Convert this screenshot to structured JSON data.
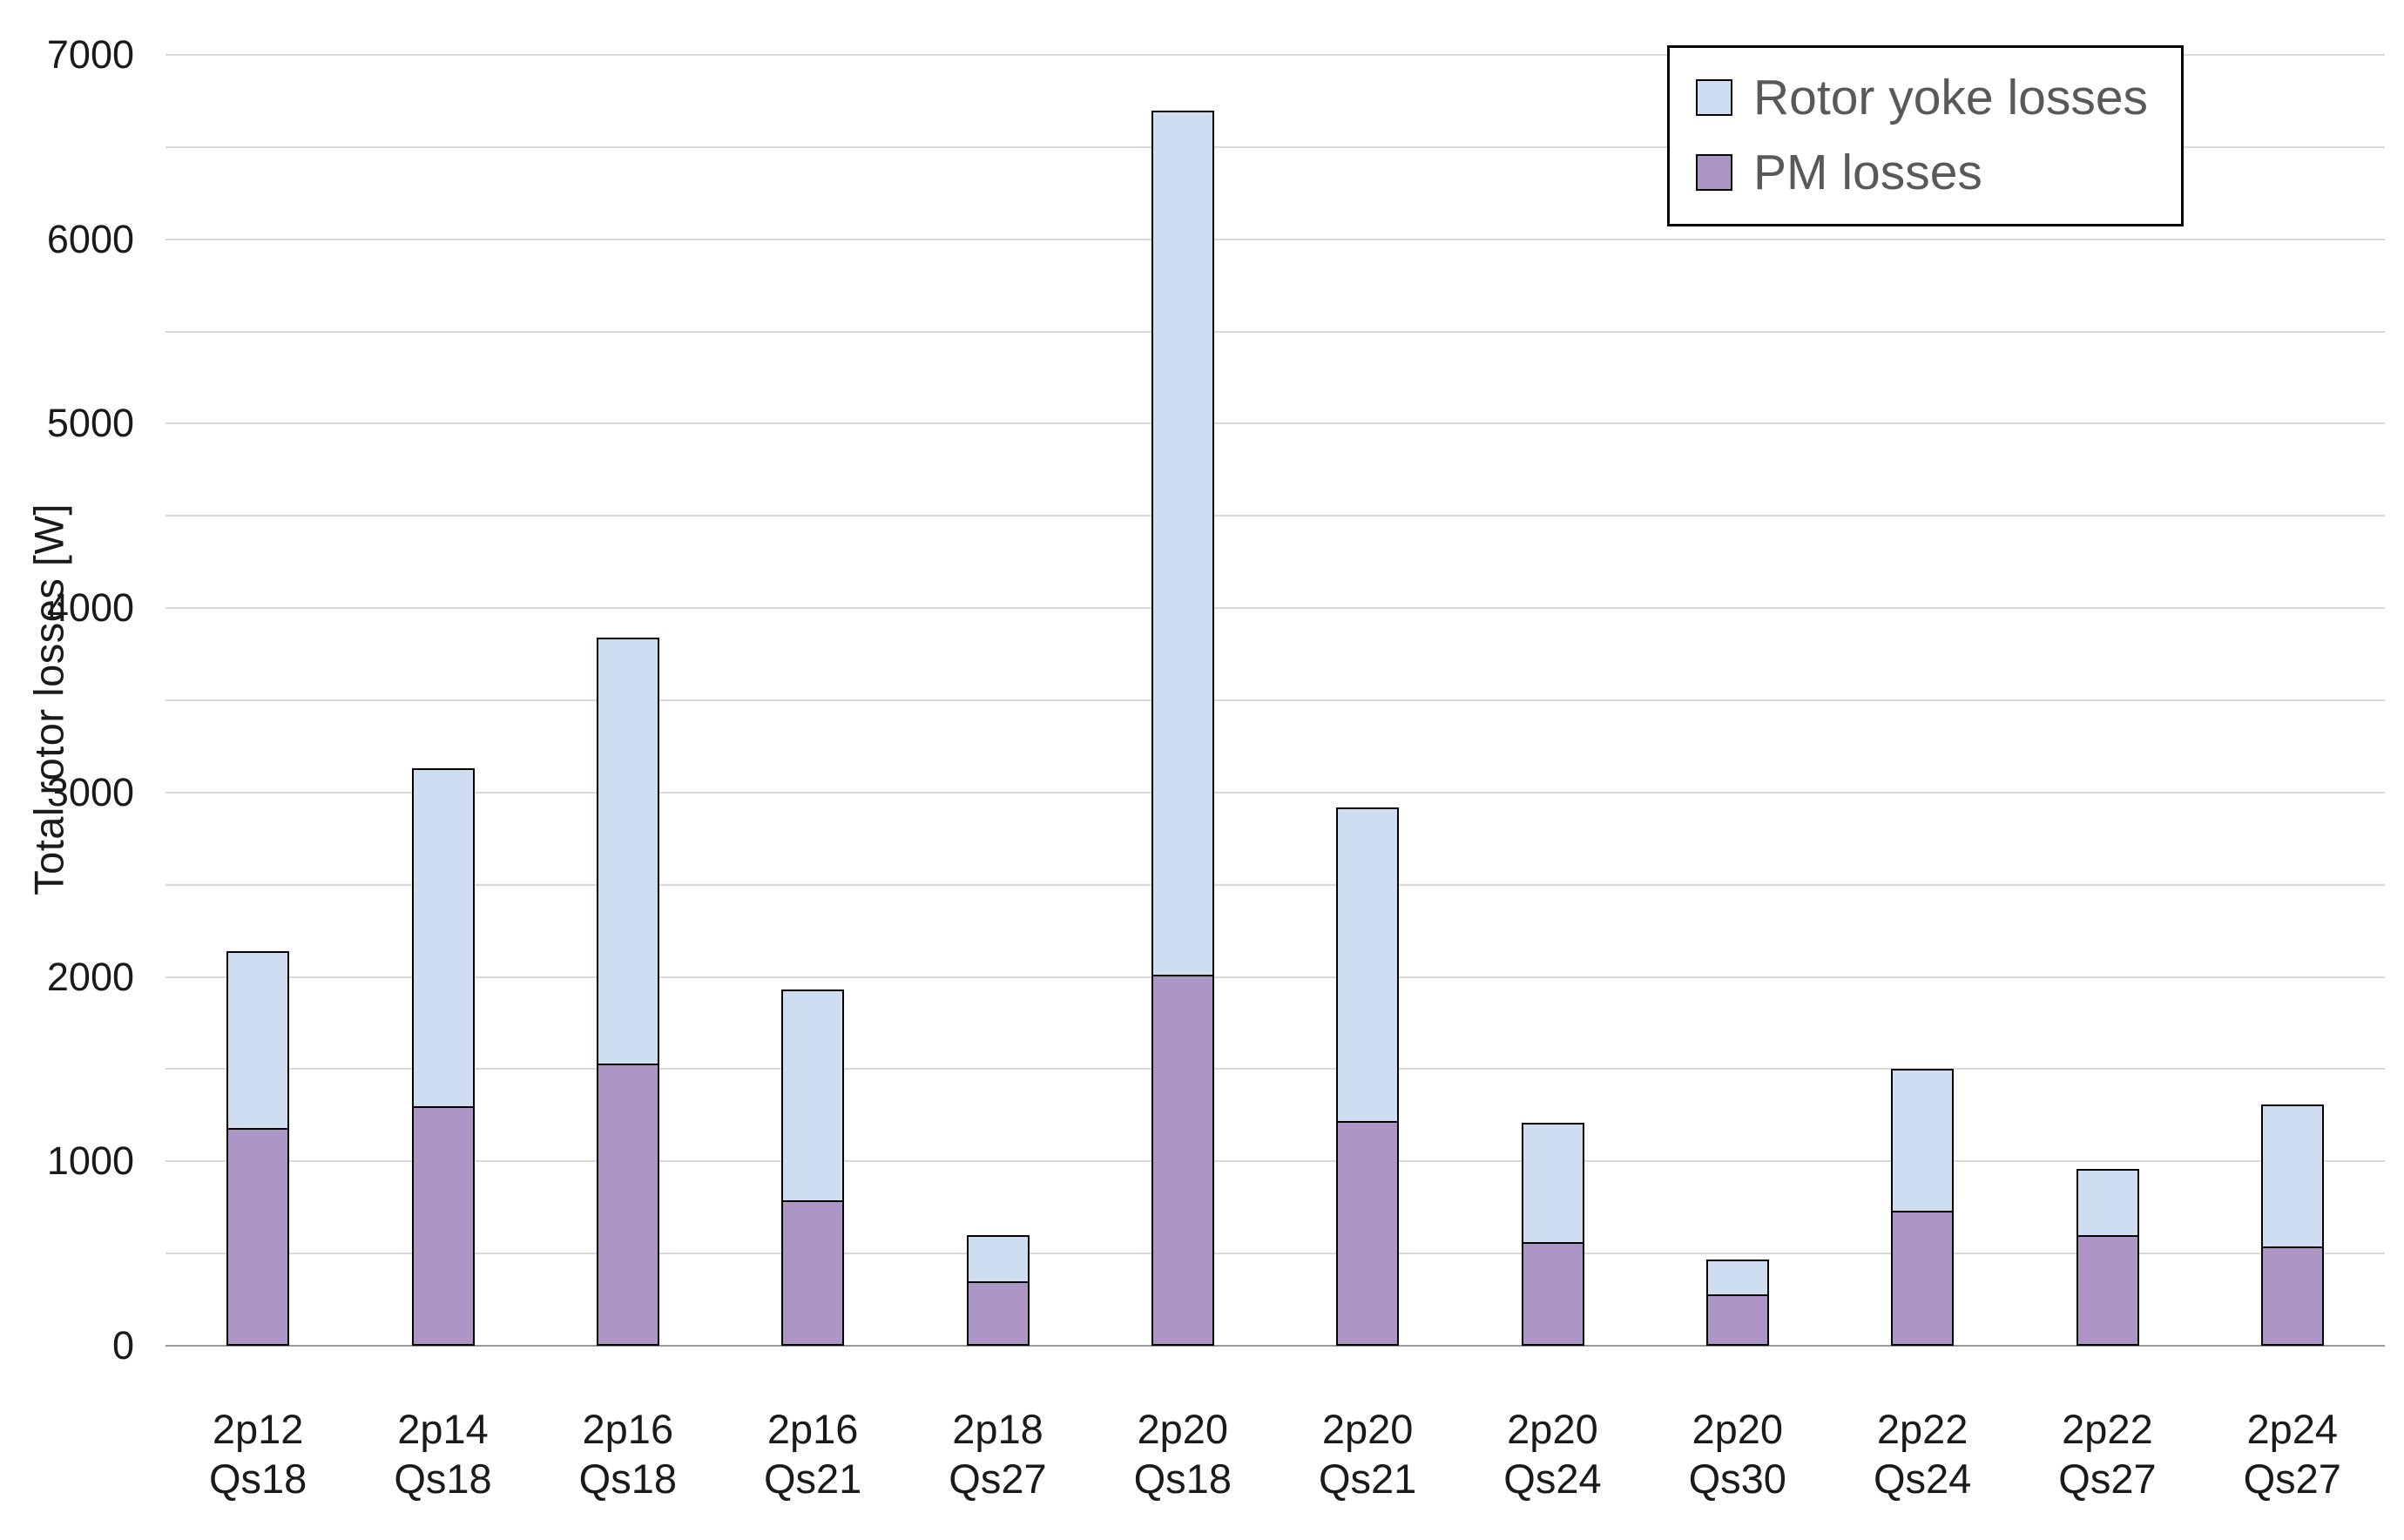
{
  "chart_data": {
    "type": "bar",
    "stacked": true,
    "title": "",
    "xlabel": "",
    "ylabel": "Total rotor losses  [W]",
    "ylim": [
      0,
      7000
    ],
    "ytick_step": 1000,
    "gridline_step": 500,
    "grid": true,
    "legend_position": "top-right",
    "legend_order": [
      "Rotor yoke losses",
      "PM losses"
    ],
    "categories": [
      [
        "2p12",
        "Qs18"
      ],
      [
        "2p14",
        "Qs18"
      ],
      [
        "2p16",
        "Qs18"
      ],
      [
        "2p16",
        "Qs21"
      ],
      [
        "2p18",
        "Qs27"
      ],
      [
        "2p20",
        "Qs18"
      ],
      [
        "2p20",
        "Qs21"
      ],
      [
        "2p20",
        "Qs24"
      ],
      [
        "2p20",
        "Qs30"
      ],
      [
        "2p22",
        "Qs24"
      ],
      [
        "2p22",
        "Qs27"
      ],
      [
        "2p24",
        "Qs27"
      ]
    ],
    "series": [
      {
        "name": "PM losses",
        "color": "#ad96c5",
        "values": [
          1180,
          1300,
          1530,
          790,
          350,
          2010,
          1220,
          560,
          280,
          730,
          600,
          540
        ]
      },
      {
        "name": "Rotor yoke losses",
        "color": "#cfddf0",
        "values": [
          960,
          1830,
          2310,
          1140,
          250,
          4690,
          1700,
          650,
          190,
          770,
          360,
          770
        ]
      }
    ],
    "colors": {
      "bar_border": "#000000",
      "gridline": "#d9d9d9",
      "axis_line": "#9b9b9b",
      "tick_text": "#1a1a1a",
      "legend_text": "#595959",
      "legend_border": "#000000"
    }
  }
}
